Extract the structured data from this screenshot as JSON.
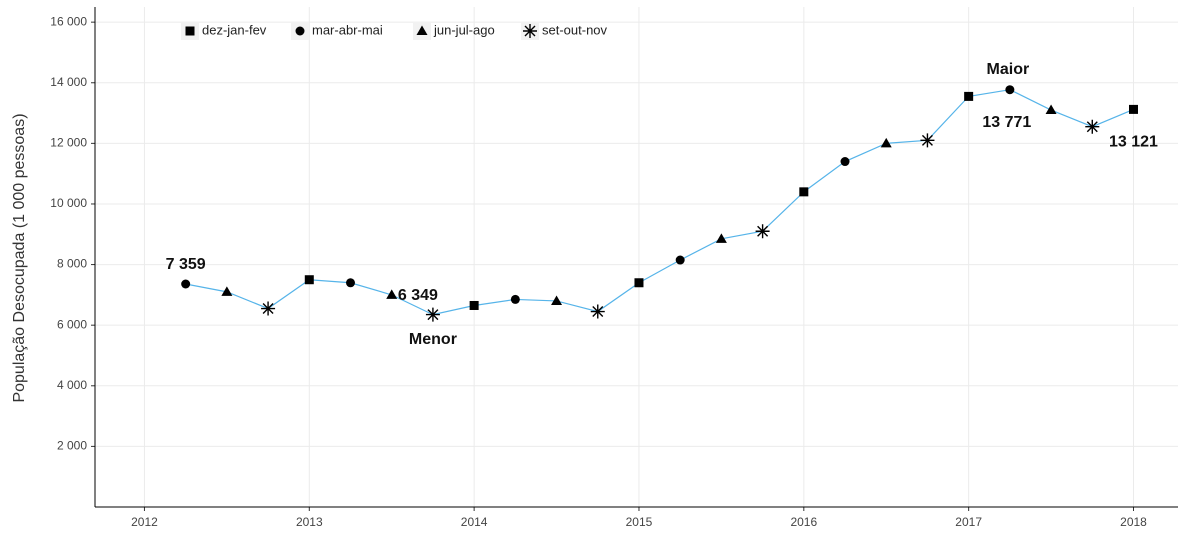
{
  "chart_data": {
    "type": "line",
    "y_label": "População Desocupada (1 000 pessoas)",
    "xlim": [
      2011.7,
      2018.27
    ],
    "xticks": [
      2012,
      2013,
      2014,
      2015,
      2016,
      2017,
      2018
    ],
    "ylim": [
      0,
      16500
    ],
    "yticks": [
      {
        "value": 2000,
        "label": "2 000"
      },
      {
        "value": 4000,
        "label": "4 000"
      },
      {
        "value": 6000,
        "label": "6 000"
      },
      {
        "value": 8000,
        "label": "8 000"
      },
      {
        "value": 10000,
        "label": "10 000"
      },
      {
        "value": 12000,
        "label": "12 000"
      },
      {
        "value": 14000,
        "label": "14 000"
      },
      {
        "value": 16000,
        "label": "16 000"
      }
    ],
    "grid": true,
    "legend": "top-left",
    "line_color": "#56b4e9",
    "marker_color": "#000000",
    "series": [
      {
        "name": "dez-jan-fev",
        "marker": "square",
        "x": [
          2013,
          2014,
          2015,
          2016,
          2017,
          2018
        ],
        "values": [
          7500,
          6650,
          7400,
          10400,
          13550,
          13121
        ],
        "value_labels": [
          null,
          null,
          null,
          null,
          null,
          "13 121"
        ]
      },
      {
        "name": "mar-abr-mai",
        "marker": "circle",
        "x": [
          2012.25,
          2013.25,
          2014.25,
          2015.25,
          2016.25,
          2017.25
        ],
        "values": [
          7359,
          7400,
          6850,
          8150,
          11400,
          13771
        ],
        "value_labels": [
          "7 359",
          null,
          null,
          null,
          null,
          "13 771"
        ]
      },
      {
        "name": "jun-jul-ago",
        "marker": "triangle",
        "x": [
          2012.5,
          2013.5,
          2014.5,
          2015.5,
          2016.5,
          2017.5
        ],
        "values": [
          7100,
          7000,
          6800,
          8850,
          12000,
          13100
        ]
      },
      {
        "name": "set-out-nov",
        "marker": "asterisk",
        "x": [
          2012.75,
          2013.75,
          2014.75,
          2015.75,
          2016.75,
          2017.75
        ],
        "values": [
          6550,
          6349,
          6450,
          9100,
          12100,
          12550
        ],
        "value_labels": [
          null,
          "6 349",
          null,
          null,
          null,
          null
        ]
      }
    ],
    "annotations": [
      "Menor",
      "Maior"
    ]
  }
}
